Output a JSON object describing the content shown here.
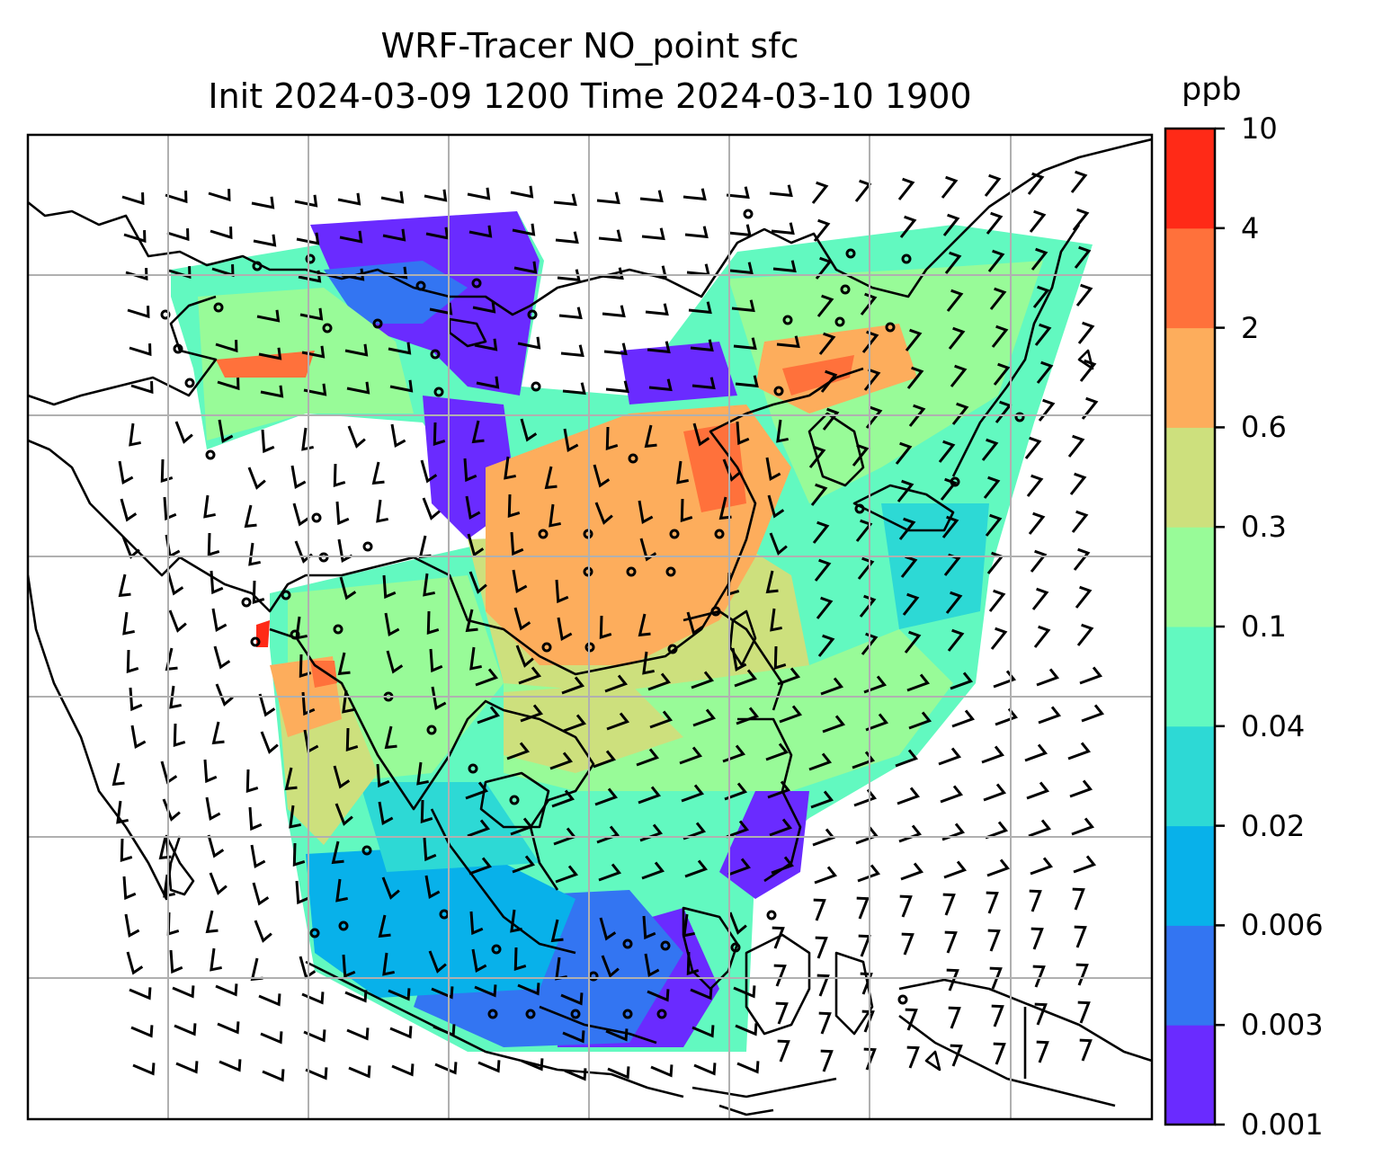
{
  "title": {
    "line1": "WRF-Tracer NO_point sfc",
    "line2": "Init 2024-03-09 1200 Time 2024-03-10 1900"
  },
  "colorbar": {
    "unit": "ppb",
    "ticks": [
      "0.001",
      "0.003",
      "0.006",
      "0.02",
      "0.04",
      "0.1",
      "0.3",
      "0.6",
      "2",
      "4",
      "10"
    ],
    "colors": [
      "#6a2bff",
      "#3375f2",
      "#08b1ea",
      "#2dd9d5",
      "#62f9c0",
      "#98fb98",
      "#cde07d",
      "#fdad5c",
      "#ff713b",
      "#ff2a17"
    ]
  },
  "map": {
    "field": "NO_point surface tracer concentration",
    "overlays": [
      "coastlines",
      "wind-barbs",
      "gridlines"
    ]
  }
}
